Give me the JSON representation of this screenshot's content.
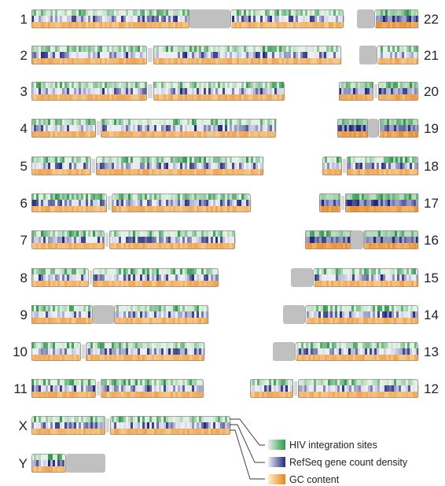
{
  "figure": {
    "chromosomes": [
      {
        "id": "1",
        "side": "left",
        "label": "1",
        "cen": "gray",
        "gene_density": "low"
      },
      {
        "id": "2",
        "side": "left",
        "label": "2",
        "cen": "constriction",
        "gene_density": "low"
      },
      {
        "id": "3",
        "side": "left",
        "label": "3",
        "cen": "constriction",
        "gene_density": "low"
      },
      {
        "id": "4",
        "side": "left",
        "label": "4",
        "cen": "constriction",
        "gene_density": "low"
      },
      {
        "id": "5",
        "side": "left",
        "label": "5",
        "cen": "constriction",
        "gene_density": "low"
      },
      {
        "id": "6",
        "side": "left",
        "label": "6",
        "cen": "constriction",
        "gene_density": "low"
      },
      {
        "id": "7",
        "side": "left",
        "label": "7",
        "cen": "constriction",
        "gene_density": "low"
      },
      {
        "id": "8",
        "side": "left",
        "label": "8",
        "cen": "constriction",
        "gene_density": "low"
      },
      {
        "id": "9",
        "side": "left",
        "label": "9",
        "cen": "gray",
        "gene_density": "low"
      },
      {
        "id": "10",
        "side": "left",
        "label": "10",
        "cen": "constriction",
        "gene_density": "low"
      },
      {
        "id": "11",
        "side": "left",
        "label": "11",
        "cen": "constriction",
        "gene_density": "low"
      },
      {
        "id": "X",
        "side": "left",
        "label": "X",
        "cen": "constriction",
        "gene_density": "low"
      },
      {
        "id": "Y",
        "side": "left",
        "label": "Y",
        "cen": "gray-tail",
        "gene_density": "low"
      },
      {
        "id": "22",
        "side": "right",
        "label": "22",
        "cen": "gray-head",
        "gene_density": "high"
      },
      {
        "id": "21",
        "side": "right",
        "label": "21",
        "cen": "gray-head",
        "gene_density": "low"
      },
      {
        "id": "20",
        "side": "right",
        "label": "20",
        "cen": "constriction",
        "gene_density": "medium"
      },
      {
        "id": "19",
        "side": "right",
        "label": "19",
        "cen": "gray",
        "gene_density": "high"
      },
      {
        "id": "18",
        "side": "right",
        "label": "18",
        "cen": "constriction",
        "gene_density": "low"
      },
      {
        "id": "17",
        "side": "right",
        "label": "17",
        "cen": "constriction",
        "gene_density": "high"
      },
      {
        "id": "16",
        "side": "right",
        "label": "16",
        "cen": "gray",
        "gene_density": "high"
      },
      {
        "id": "15",
        "side": "right",
        "label": "15",
        "cen": "gray-head",
        "gene_density": "low"
      },
      {
        "id": "14",
        "side": "right",
        "label": "14",
        "cen": "gray-head",
        "gene_density": "low"
      },
      {
        "id": "13",
        "side": "right",
        "label": "13",
        "cen": "gray-head",
        "gene_density": "low"
      },
      {
        "id": "12",
        "side": "right",
        "label": "12",
        "cen": "constriction",
        "gene_density": "low"
      }
    ],
    "legend": [
      {
        "label": "HIV integration sites",
        "swatch": "green"
      },
      {
        "label": "RefSeq gene count density",
        "swatch": "blue"
      },
      {
        "label": "GC content",
        "swatch": "orange"
      }
    ],
    "colors": {
      "hiv_low": "#e6f2e6",
      "hiv_high": "#2e9a4a",
      "gene_low": "#eeeef6",
      "gene_high": "#242a7c",
      "gc_low": "#fff1c4",
      "gc_high": "#e9831f",
      "centromere": "#c0c0c0",
      "outline": "#8e8e8e"
    }
  }
}
